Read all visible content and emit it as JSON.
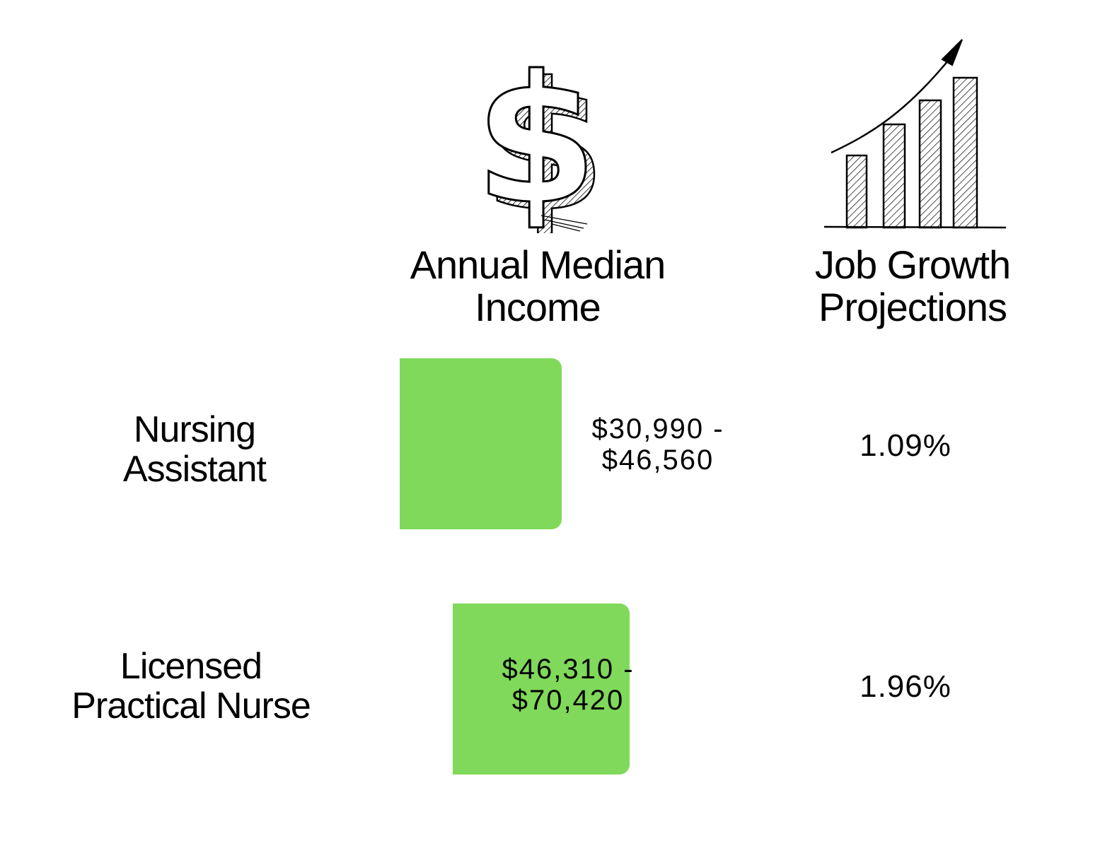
{
  "header": {
    "income_line1": "Annual Median",
    "income_line2": "Income",
    "growth_line1": "Job Growth",
    "growth_line2": "Projections"
  },
  "icons": {
    "income": "dollar-sign-icon",
    "growth": "growth-chart-icon"
  },
  "colors": {
    "bar": "#80d95a",
    "text": "#000000"
  },
  "chart_data": {
    "type": "bar",
    "orientation": "horizontal",
    "categories": [
      "Nursing Assistant",
      "Licensed Practical Nurse"
    ],
    "series": [
      {
        "name": "Annual Median Income",
        "values": [
          30990,
          46310
        ],
        "range_high": [
          46560,
          70420
        ],
        "labels": [
          "$30,990 -",
          "$46,310 -"
        ],
        "labels_line2": [
          "$46,560",
          "$70,420"
        ]
      },
      {
        "name": "Job Growth Projections",
        "values": [
          1.09,
          1.96
        ],
        "labels": [
          "1.09%",
          "1.96%"
        ]
      }
    ]
  },
  "rows": [
    {
      "label_line1": "Nursing",
      "label_line2": "Assistant",
      "income_line1": "$30,990 -",
      "income_line2": "$46,560",
      "growth": "1.09%"
    },
    {
      "label_line1": "Licensed",
      "label_line2": "Practical Nurse",
      "income_line1": "$46,310 -",
      "income_line2": "$70,420",
      "growth": "1.96%"
    }
  ]
}
